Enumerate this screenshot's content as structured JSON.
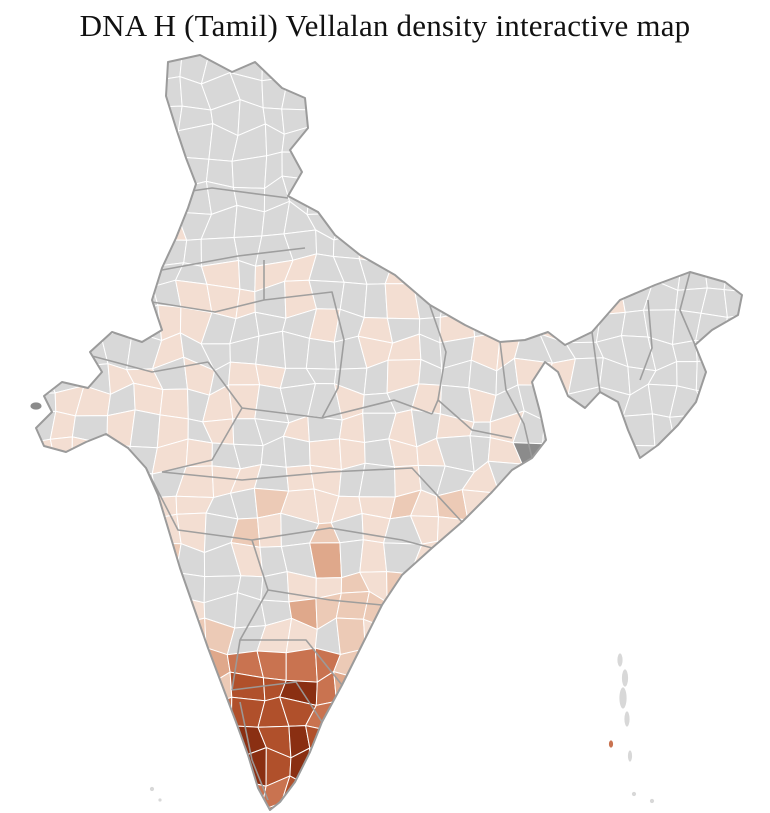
{
  "title": "DNA H (Tamil) Vellalan density interactive map",
  "map": {
    "label": "India district-level choropleth map"
  },
  "colors": {
    "background": "#ffffff",
    "title_text": "#111111",
    "no_data": "#d8d8d8",
    "density_1": "#f3ded2",
    "density_2": "#eccab6",
    "density_3": "#dfa88b",
    "density_4": "#c97350",
    "density_5": "#b0502b",
    "density_6": "#8a2f12",
    "district_border": "#ffffff",
    "state_border": "#9b9b9b",
    "dark_district": "#8b8b8b"
  }
}
